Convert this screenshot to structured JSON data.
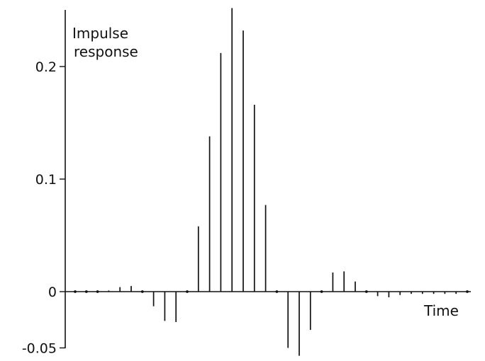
{
  "chart_data": {
    "type": "bar",
    "style": "stem",
    "ylabel_line1": "Impulse",
    "ylabel_line2": "response",
    "xlabel": "Time",
    "ylim": [
      -0.05,
      0.25
    ],
    "yticks": [
      {
        "value": -0.05,
        "label": "-0.05"
      },
      {
        "value": 0,
        "label": "0"
      },
      {
        "value": 0.1,
        "label": "0.1"
      },
      {
        "value": 0.2,
        "label": "0.2"
      }
    ],
    "x": [
      0,
      1,
      2,
      3,
      4,
      5,
      6,
      7,
      8,
      9,
      10,
      11,
      12,
      13,
      14,
      15,
      16,
      17,
      18,
      19,
      20,
      21,
      22,
      23,
      24,
      25,
      26,
      27,
      28,
      29,
      30,
      31,
      32,
      33,
      34,
      35
    ],
    "values": [
      0,
      0,
      0,
      0.001,
      0.004,
      0.005,
      0,
      -0.013,
      -0.026,
      -0.027,
      0,
      0.058,
      0.138,
      0.212,
      0.252,
      0.232,
      0.166,
      0.077,
      0,
      -0.05,
      -0.057,
      -0.034,
      0,
      0.017,
      0.018,
      0.009,
      0,
      -0.004,
      -0.005,
      -0.003,
      -0.002,
      -0.002,
      -0.002,
      -0.002,
      -0.002,
      0
    ]
  }
}
